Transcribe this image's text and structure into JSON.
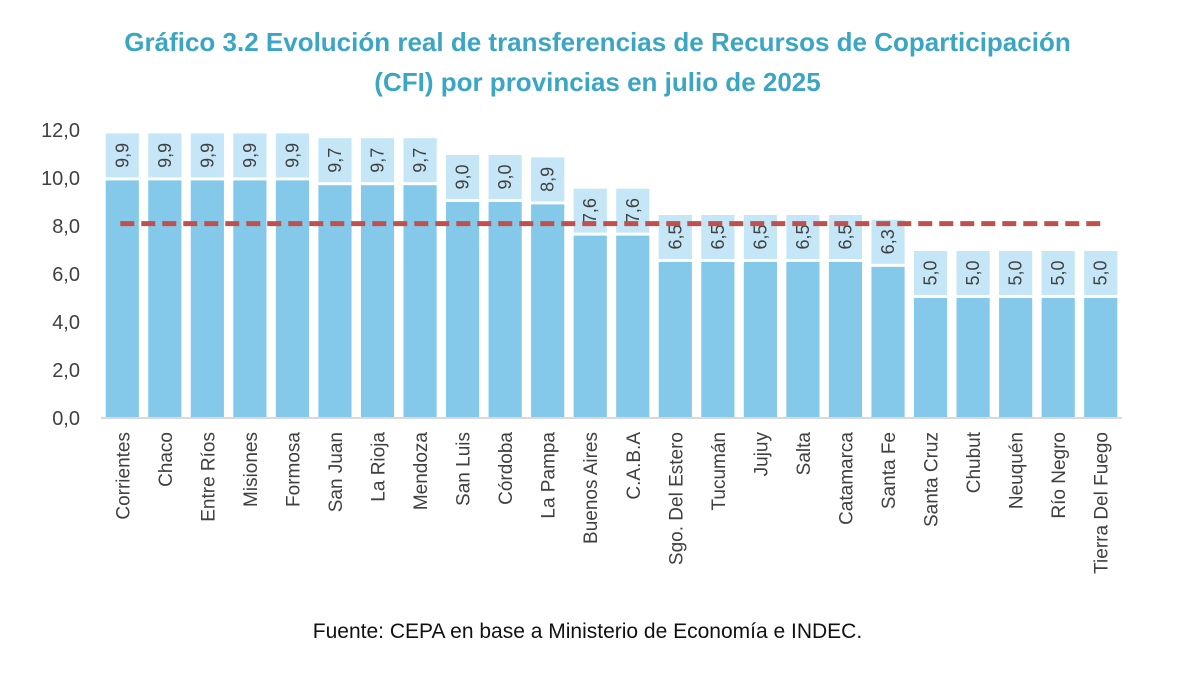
{
  "title": {
    "line1": "Gráfico 3.2 Evolución real de transferencias de Recursos de Coparticipación",
    "line2": "(CFI) por provincias en julio de 2025"
  },
  "source": "Fuente: CEPA en base a Ministerio de Economía e INDEC.",
  "chart_data": {
    "type": "bar",
    "categories": [
      "Corrientes",
      "Chaco",
      "Entre Ríos",
      "Misiones",
      "Formosa",
      "San Juan",
      "La Rioja",
      "Mendoza",
      "San Luis",
      "Córdoba",
      "La Pampa",
      "Buenos Aires",
      "C.A.B.A",
      "Sgo. Del Estero",
      "Tucumán",
      "Jujuy",
      "Salta",
      "Catamarca",
      "Santa Fe",
      "Santa Cruz",
      "Chubut",
      "Neuquén",
      "Río Negro",
      "Tierra Del Fuego"
    ],
    "values": [
      9.9,
      9.9,
      9.9,
      9.9,
      9.9,
      9.7,
      9.7,
      9.7,
      9.0,
      9.0,
      8.9,
      7.6,
      7.6,
      6.5,
      6.5,
      6.5,
      6.5,
      6.5,
      6.3,
      5.0,
      5.0,
      5.0,
      5.0,
      5.0
    ],
    "data_labels": [
      "9,9",
      "9,9",
      "9,9",
      "9,9",
      "9,9",
      "9,7",
      "9,7",
      "9,7",
      "9,0",
      "9,0",
      "8,9",
      "7,6",
      "7,6",
      "6,5",
      "6,5",
      "6,5",
      "6,5",
      "6,5",
      "6,3",
      "5,0",
      "5,0",
      "5,0",
      "5,0",
      "5,0"
    ],
    "y_ticks": [
      "0,0",
      "2,0",
      "4,0",
      "6,0",
      "8,0",
      "10,0",
      "12,0"
    ],
    "y_tick_values": [
      0,
      2,
      4,
      6,
      8,
      10,
      12
    ],
    "ylim": [
      0,
      12
    ],
    "reference_line": 8.1,
    "grid": false,
    "colors": {
      "bar": "#85c9ea",
      "label_box": "#c5e6f6",
      "reference_line": "#c0504d",
      "axis": "#d9d9d9",
      "text": "#404040"
    }
  }
}
